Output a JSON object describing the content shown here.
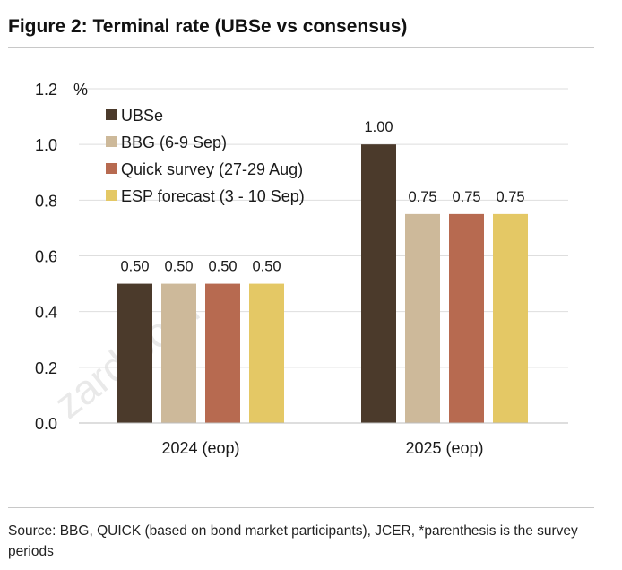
{
  "title": "Figure 2: Terminal rate (UBSe vs consensus)",
  "source_note": "Source: BBG, QUICK (based on bond market participants), JCER, *parenthesis is the survey periods",
  "watermark": "zard.com",
  "chart_data": {
    "type": "bar",
    "title": "Terminal rate (UBSe vs consensus)",
    "ylabel": "%",
    "ylim": [
      0.0,
      1.2
    ],
    "yticks": [
      "0.0",
      "0.2",
      "0.4",
      "0.6",
      "0.8",
      "1.0",
      "1.2"
    ],
    "grid": true,
    "legend_position": "top-left",
    "categories": [
      "2024 (eop)",
      "2025 (eop)"
    ],
    "series": [
      {
        "name": "UBSe",
        "color": "#4b3a2b",
        "values": [
          0.5,
          1.0
        ],
        "labels": [
          "0.50",
          "1.00"
        ]
      },
      {
        "name": "BBG (6-9 Sep)",
        "color": "#cdb99a",
        "values": [
          0.5,
          0.75
        ],
        "labels": [
          "0.50",
          "0.75"
        ]
      },
      {
        "name": "Quick survey (27-29 Aug)",
        "color": "#b76a50",
        "values": [
          0.5,
          0.75
        ],
        "labels": [
          "0.50",
          "0.75"
        ]
      },
      {
        "name": "ESP forecast (3 - 10 Sep)",
        "color": "#e4c865",
        "values": [
          0.5,
          0.75
        ],
        "labels": [
          "0.50",
          "0.75"
        ]
      }
    ]
  }
}
